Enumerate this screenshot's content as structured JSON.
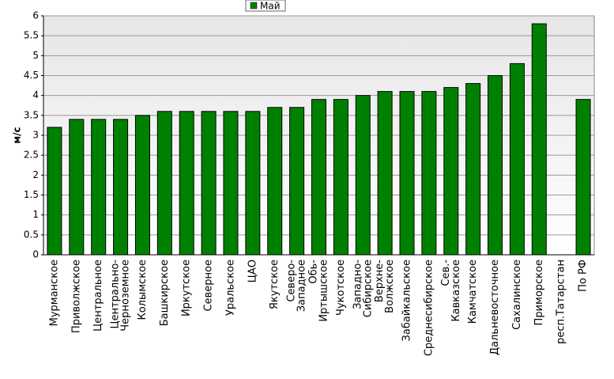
{
  "chart_data": {
    "type": "bar",
    "y_label": "м/с",
    "categories": [
      "Мурманское",
      "Приволжское",
      "Центральное",
      "Центрально-\nЧерноземное",
      "Колымское",
      "Башкирское",
      "Иркутское",
      "Северное",
      "Уральское",
      "ЦАО",
      "Якутское",
      "Северо-\nЗападное",
      "Обь-\nИртышское",
      "Чукотское",
      "Западно-\nСибирское",
      "Верхне-\nВолжское",
      "Забайкальское",
      "Среднесибирское",
      "Сев.-\nКавказское",
      "Камчатское",
      "Дальневосточное",
      "Сахалинское",
      "Приморское",
      "респ.Татарстан",
      "По РФ"
    ],
    "series": [
      {
        "name": "Май",
        "color": "#008000",
        "values": [
          3.2,
          3.4,
          3.4,
          3.4,
          3.5,
          3.6,
          3.6,
          3.6,
          3.6,
          3.6,
          3.7,
          3.7,
          3.9,
          3.9,
          4.0,
          4.1,
          4.1,
          4.1,
          4.2,
          4.3,
          4.5,
          4.8,
          5.8,
          null,
          3.9
        ]
      }
    ],
    "ylim": [
      0,
      6
    ],
    "yticks": [
      0,
      0.5,
      1,
      1.5,
      2,
      2.5,
      3,
      3.5,
      4,
      4.5,
      5,
      5.5,
      6
    ],
    "grid": true,
    "legend": "top"
  }
}
